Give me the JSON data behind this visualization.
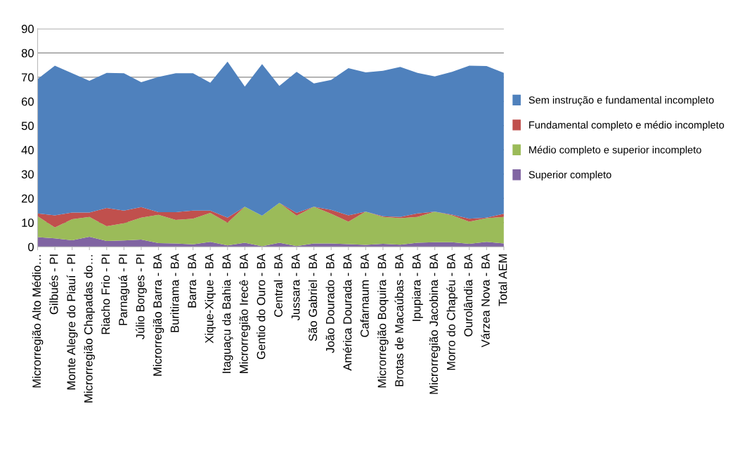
{
  "chart_data": {
    "type": "area",
    "stacked": true,
    "categories": [
      "Microrregião Alto Médio…",
      "Gilbués - PI",
      "Monte Alegre do Piauí - PI",
      "Microrregião Chapadas do…",
      "Riacho Frio - PI",
      "Parnaguá - PI",
      "Júlio Borges - PI",
      "Microrregião Barra - BA",
      "Buritirama - BA",
      "Barra - BA",
      "Xique-Xique - BA",
      "Itaguaçu da Bahia - BA",
      "Microrregião Irecê - BA",
      "Gentio do Ouro - BA",
      "Central - BA",
      "Jussara - BA",
      "São Gabriel - BA",
      "João Dourado - BA",
      "América Dourada - BA",
      "Cafarnaum - BA",
      "Microrregião Boquira - BA",
      "Brotas de Macaúbas - BA",
      "Ipupiara - BA",
      "Microrregião Jacobina - BA",
      "Morro do Chapéu - BA",
      "Ourolândia - BA",
      "Várzea Nova - BA",
      "Total AEM"
    ],
    "series": [
      {
        "name": "Superior completo",
        "color": "#8064a2",
        "values": [
          4.0,
          3.5,
          2.7,
          4.1,
          2.4,
          2.6,
          3.0,
          1.5,
          1.4,
          1.0,
          2.0,
          0.6,
          1.7,
          0.2,
          1.7,
          0.3,
          1.4,
          1.4,
          1.1,
          0.8,
          1.2,
          0.9,
          1.7,
          1.9,
          1.9,
          1.2,
          2.0,
          1.4
        ]
      },
      {
        "name": "Médio completo e superior incompleto",
        "color": "#9bbb59",
        "values": [
          8.6,
          4.5,
          8.7,
          8.2,
          6.1,
          7.1,
          9.0,
          11.7,
          9.7,
          10.6,
          12.0,
          9.3,
          14.8,
          12.6,
          16.4,
          12.5,
          15.1,
          12.2,
          9.3,
          13.7,
          11.1,
          10.9,
          10.6,
          12.6,
          11.1,
          9.2,
          9.8,
          10.9
        ]
      },
      {
        "name": "Fundamental completo e médio incompleto",
        "color": "#c0504d",
        "values": [
          1.2,
          5.0,
          2.7,
          1.8,
          7.5,
          5.2,
          4.4,
          1.1,
          3.2,
          3.3,
          0.9,
          2.1,
          0,
          0,
          0,
          1.2,
          0,
          1.6,
          2.6,
          0,
          0.3,
          0.5,
          1.5,
          0,
          0.3,
          1.2,
          0.2,
          1.3
        ]
      },
      {
        "name": "Sem instrução e fundamental incompleto",
        "color": "#4f81bd",
        "values": [
          55.4,
          61.7,
          57.5,
          54.4,
          55.8,
          56.7,
          51.5,
          55.8,
          57.3,
          56.7,
          52.8,
          64.4,
          49.6,
          62.6,
          48.3,
          58.2,
          50.9,
          53.7,
          60.7,
          57.5,
          60.0,
          61.9,
          58.0,
          55.8,
          58.9,
          63.1,
          62.6,
          58.2
        ]
      }
    ],
    "ylim": [
      0,
      90
    ],
    "yticks": [
      0,
      10,
      20,
      30,
      40,
      50,
      60,
      70,
      80,
      90
    ],
    "grid": "y",
    "legend": "right"
  }
}
